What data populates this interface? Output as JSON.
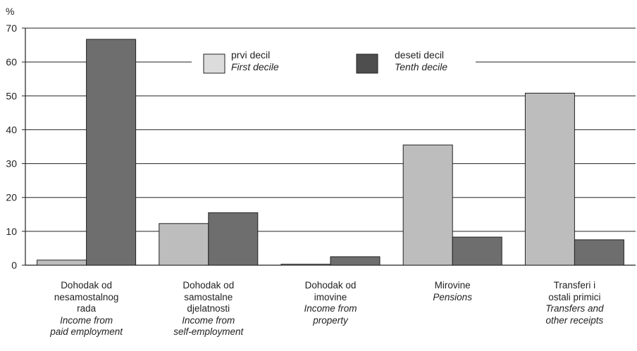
{
  "chart_data": {
    "type": "bar",
    "y_unit": "%",
    "ylim": [
      0,
      70
    ],
    "yticks": [
      0,
      10,
      20,
      30,
      40,
      50,
      60,
      70
    ],
    "grid": true,
    "legend_position": "top-center",
    "categories": [
      {
        "hr": [
          "Dohodak od",
          "nesamostalnog",
          "rada"
        ],
        "en": [
          "Income from",
          "paid employment"
        ]
      },
      {
        "hr": [
          "Dohodak od",
          "samostalne",
          "djelatnosti"
        ],
        "en": [
          "Income from",
          "self-employment"
        ]
      },
      {
        "hr": [
          "Dohodak od",
          "imovine"
        ],
        "en": [
          "Income from",
          "property"
        ]
      },
      {
        "hr": [
          "Mirovine"
        ],
        "en": [
          "Pensions"
        ]
      },
      {
        "hr": [
          "Transferi i",
          "ostali primici"
        ],
        "en": [
          "Transfers and",
          "other receipts"
        ]
      }
    ],
    "series": [
      {
        "name": "prvi decil",
        "name_en": "First decile",
        "color": "#bdbdbd",
        "values": [
          1.5,
          12.3,
          0.3,
          35.5,
          50.8
        ]
      },
      {
        "name": "deseti decil",
        "name_en": "Tenth decile",
        "color": "#6e6e6e",
        "values": [
          66.7,
          15.5,
          2.5,
          8.3,
          7.5
        ]
      }
    ]
  }
}
